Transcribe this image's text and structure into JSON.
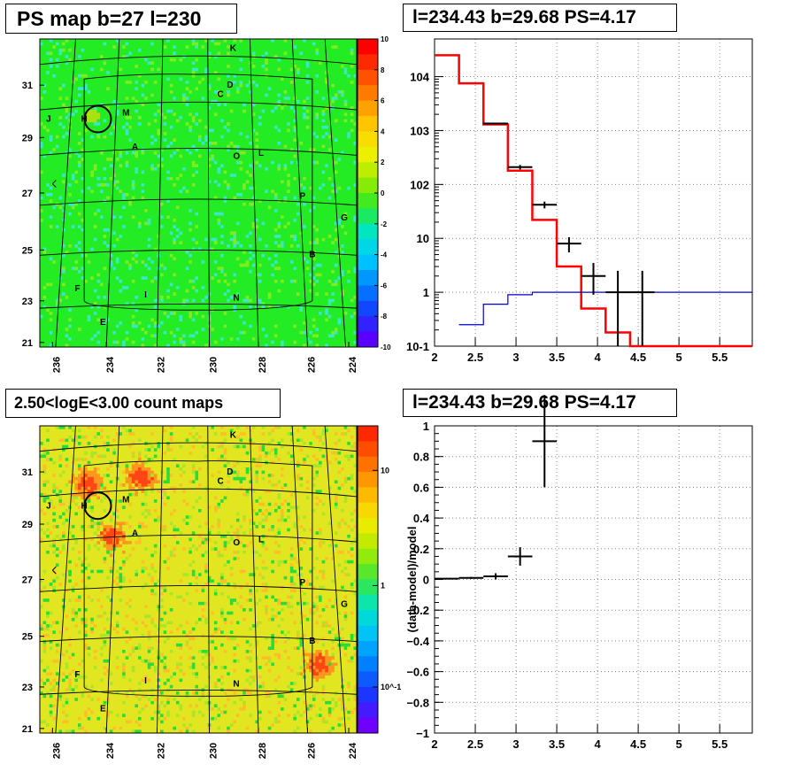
{
  "panels": {
    "ps_map_title": "PS map b=27 l=230",
    "spectrum_title": "l=234.43 b=29.68 PS=4.17",
    "count_map_title": "2.50<logE<3.00 count maps",
    "residual_title": "l=234.43 b=29.68 PS=4.17"
  },
  "chart_data": [
    {
      "type": "heatmap",
      "title": "PS map b=27 l=230",
      "x_ticks": [
        "236",
        "234",
        "232",
        "230",
        "228",
        "226",
        "224"
      ],
      "y_ticks": [
        "21",
        "23",
        "25",
        "27",
        "29",
        "31"
      ],
      "colorbar": {
        "range": [
          -10,
          10
        ],
        "ticks": [
          "10",
          "8",
          "6",
          "4",
          "2",
          "0",
          "-2",
          "-4",
          "-6",
          "-8",
          "-10"
        ]
      },
      "sources": [
        "K",
        "D",
        "C",
        "J",
        "H",
        "M",
        "A",
        "O",
        "L",
        "P",
        "G",
        "B",
        "F",
        "I",
        "N",
        "E"
      ],
      "colors": {
        "background": "#22ee22",
        "circle": "#000000"
      }
    },
    {
      "type": "line",
      "title": "l=234.43 b=29.68 PS=4.17",
      "xlim": [
        2,
        5.9
      ],
      "ylim": [
        0.1,
        50000
      ],
      "y_scale": "log",
      "x_ticks": [
        "2",
        "2.5",
        "3",
        "3.5",
        "4",
        "4.5",
        "5",
        "5.5"
      ],
      "y_ticks": [
        "10^-1",
        "1",
        "10",
        "10^2",
        "10^3",
        "10^4"
      ],
      "grid": true,
      "series": [
        {
          "color": "#ff0000",
          "style": "histogram",
          "edges": [
            2,
            2.3,
            2.6,
            2.9,
            3.2,
            3.5,
            3.8,
            4.1,
            4.4,
            5.9
          ],
          "values": [
            25000,
            7500,
            1300,
            180,
            22,
            3,
            0.5,
            0.18,
            0.1
          ]
        },
        {
          "color": "#0000cc",
          "style": "histogram",
          "edges": [
            2.3,
            2.6,
            2.9,
            3.2,
            5.9
          ],
          "values": [
            0.25,
            0.6,
            0.9,
            1.0
          ]
        },
        {
          "color": "#000000",
          "style": "points",
          "points": [
            {
              "x": 2.75,
              "y": 1350,
              "xerr": 0.15,
              "ylo": 1300,
              "yhi": 1400
            },
            {
              "x": 3.05,
              "y": 210,
              "xerr": 0.15,
              "ylo": 190,
              "yhi": 230
            },
            {
              "x": 3.35,
              "y": 42,
              "xerr": 0.15,
              "ylo": 36,
              "yhi": 48
            },
            {
              "x": 3.65,
              "y": 8,
              "xerr": 0.15,
              "ylo": 5.5,
              "yhi": 10.5
            },
            {
              "x": 3.95,
              "y": 2,
              "xerr": 0.15,
              "ylo": 0.9,
              "yhi": 3.5
            },
            {
              "x": 4.25,
              "y": 1,
              "xerr": 0.15,
              "ylo": 0.1,
              "yhi": 2.5
            },
            {
              "x": 4.55,
              "y": 1,
              "xerr": 0.15,
              "ylo": 0.1,
              "yhi": 2.5
            }
          ]
        }
      ]
    },
    {
      "type": "heatmap",
      "title": "2.50<logE<3.00 count maps",
      "x_ticks": [
        "236",
        "234",
        "232",
        "230",
        "228",
        "226",
        "224"
      ],
      "y_ticks": [
        "21",
        "23",
        "25",
        "27",
        "29",
        "31"
      ],
      "colorbar": {
        "scale": "log",
        "ticks": [
          "10",
          "1",
          "10^-1"
        ]
      },
      "sources": [
        "K",
        "D",
        "C",
        "J",
        "H",
        "M",
        "A",
        "O",
        "L",
        "P",
        "G",
        "B",
        "F",
        "I",
        "N",
        "E"
      ],
      "colors": {
        "background": "#e6e620",
        "hotspot": "#ff3300",
        "circle": "#000000"
      }
    },
    {
      "type": "scatter",
      "title": "l=234.43 b=29.68 PS=4.17",
      "ylabel": "(data-model)/model",
      "xlim": [
        2,
        5.9
      ],
      "ylim": [
        -1,
        1
      ],
      "x_ticks": [
        "2",
        "2.5",
        "3",
        "3.5",
        "4",
        "4.5",
        "5",
        "5.5"
      ],
      "y_ticks": [
        "1",
        "0.8",
        "0.6",
        "0.4",
        "0.2",
        "0",
        "−0.2",
        "−0.4",
        "−0.6",
        "−0.8",
        "−1"
      ],
      "grid": true,
      "points": [
        {
          "x": 2.15,
          "y": 0.005,
          "xerr": 0.15,
          "yerr": 0.004
        },
        {
          "x": 2.45,
          "y": 0.01,
          "xerr": 0.15,
          "yerr": 0.006
        },
        {
          "x": 2.75,
          "y": 0.02,
          "xerr": 0.15,
          "yerr": 0.02
        },
        {
          "x": 3.05,
          "y": 0.15,
          "xerr": 0.15,
          "yerr": 0.06
        },
        {
          "x": 3.35,
          "y": 0.9,
          "xerr": 0.15,
          "yerr": 0.3
        }
      ]
    }
  ]
}
